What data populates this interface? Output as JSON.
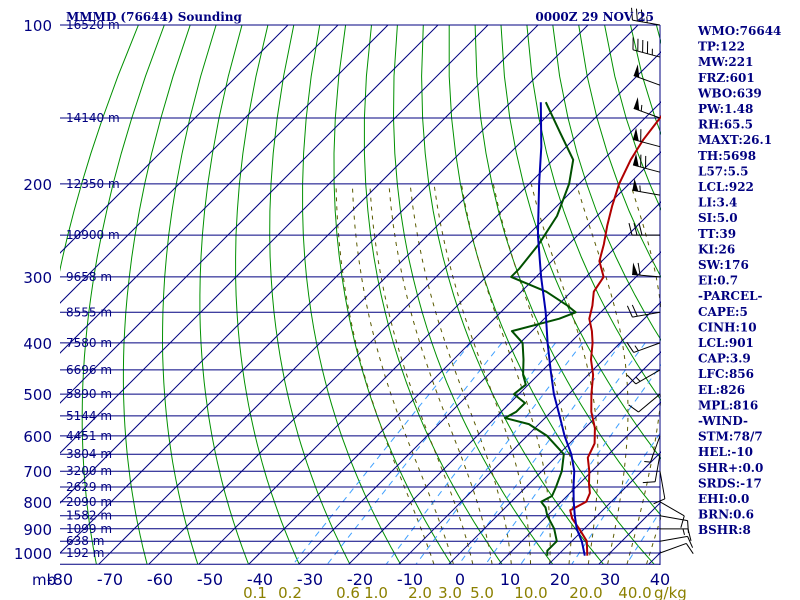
{
  "chart_data": {
    "type": "line",
    "subtype": "skew-t log-p sounding",
    "title": "MMMD (76644) Sounding",
    "valid_time": "0000Z 29 NOV 25",
    "pressure_unit": "mb",
    "mixing_ratio_unit": "g/kg",
    "pressure_range": [
      100,
      1050
    ],
    "temperature_range": [
      -80,
      40
    ],
    "pressure_ticks": [
      100,
      200,
      300,
      400,
      500,
      600,
      700,
      800,
      900,
      1000
    ],
    "temperature_ticks": [
      -80,
      -70,
      -60,
      -50,
      -40,
      -30,
      -20,
      -10,
      0,
      10,
      20,
      30,
      40
    ],
    "temperature_tick_labels": [
      "-80",
      "-70",
      "-60",
      "-50",
      "-40",
      "-30",
      "-20",
      "-10",
      "0",
      "10",
      "20",
      "30",
      "40"
    ],
    "mixing_ratio_labels": [
      "0.1",
      "0.2",
      "0.6",
      "1.0",
      "2.0",
      "3.0",
      "5.0",
      "10.0",
      "20.0",
      "40.0"
    ],
    "height_levels": [
      {
        "p": 100,
        "label": "16520 m"
      },
      {
        "p": 150,
        "label": "14140 m"
      },
      {
        "p": 200,
        "label": "12350 m"
      },
      {
        "p": 250,
        "label": "10900 m"
      },
      {
        "p": 300,
        "label": "9658 m"
      },
      {
        "p": 350,
        "label": "8555 m"
      },
      {
        "p": 400,
        "label": "7580 m"
      },
      {
        "p": 450,
        "label": "6696 m"
      },
      {
        "p": 500,
        "label": "5890 m"
      },
      {
        "p": 550,
        "label": "5144 m"
      },
      {
        "p": 600,
        "label": "4451 m"
      },
      {
        "p": 650,
        "label": "3804 m"
      },
      {
        "p": 700,
        "label": "3200 m"
      },
      {
        "p": 750,
        "label": "2629 m"
      },
      {
        "p": 800,
        "label": "2090 m"
      },
      {
        "p": 850,
        "label": "1582 m"
      },
      {
        "p": 900,
        "label": "1099 m"
      },
      {
        "p": 950,
        "label": "638 m"
      },
      {
        "p": 1000,
        "label": "192 m"
      }
    ],
    "series": [
      {
        "name": "Temperature",
        "color": "#b00000",
        "points": [
          [
            100,
            -64.5
          ],
          [
            110,
            -64
          ],
          [
            120,
            -60
          ],
          [
            135,
            -58
          ],
          [
            150,
            -57
          ],
          [
            165,
            -56
          ],
          [
            180,
            -54.5
          ],
          [
            200,
            -52
          ],
          [
            220,
            -49
          ],
          [
            240,
            -46
          ],
          [
            260,
            -43
          ],
          [
            280,
            -40.5
          ],
          [
            300,
            -36.5
          ],
          [
            320,
            -35.5
          ],
          [
            340,
            -33
          ],
          [
            360,
            -31
          ],
          [
            380,
            -28
          ],
          [
            400,
            -25.5
          ],
          [
            430,
            -22.5
          ],
          [
            460,
            -19
          ],
          [
            500,
            -15.5
          ],
          [
            540,
            -12
          ],
          [
            580,
            -8
          ],
          [
            620,
            -5
          ],
          [
            660,
            -3.5
          ],
          [
            700,
            -0.5
          ],
          [
            740,
            2
          ],
          [
            770,
            4
          ],
          [
            800,
            5
          ],
          [
            830,
            3.5
          ],
          [
            860,
            5.5
          ],
          [
            900,
            9
          ],
          [
            950,
            13
          ],
          [
            1012,
            16
          ]
        ]
      },
      {
        "name": "Dewpoint",
        "color": "#005000",
        "points": [
          [
            140,
            -83
          ],
          [
            160,
            -74
          ],
          [
            180,
            -66
          ],
          [
            200,
            -62
          ],
          [
            230,
            -58
          ],
          [
            260,
            -56
          ],
          [
            290,
            -55
          ],
          [
            300,
            -55
          ],
          [
            320,
            -45
          ],
          [
            340,
            -38
          ],
          [
            350,
            -35
          ],
          [
            360,
            -37
          ],
          [
            380,
            -44
          ],
          [
            400,
            -39.5
          ],
          [
            430,
            -36
          ],
          [
            460,
            -33
          ],
          [
            480,
            -30.5
          ],
          [
            500,
            -31
          ],
          [
            520,
            -27
          ],
          [
            540,
            -27
          ],
          [
            555,
            -28
          ],
          [
            570,
            -22
          ],
          [
            600,
            -16
          ],
          [
            650,
            -9
          ],
          [
            700,
            -6
          ],
          [
            750,
            -4
          ],
          [
            780,
            -3
          ],
          [
            800,
            -4
          ],
          [
            820,
            -2
          ],
          [
            850,
            0
          ],
          [
            900,
            4
          ],
          [
            950,
            7
          ],
          [
            990,
            7
          ],
          [
            1012,
            8
          ]
        ]
      },
      {
        "name": "Parcel",
        "color": "#0000b0",
        "points": [
          [
            140,
            -84
          ],
          [
            170,
            -75
          ],
          [
            200,
            -68
          ],
          [
            250,
            -58
          ],
          [
            300,
            -49
          ],
          [
            350,
            -41
          ],
          [
            400,
            -34.5
          ],
          [
            450,
            -28.5
          ],
          [
            500,
            -23
          ],
          [
            550,
            -17.5
          ],
          [
            600,
            -12.5
          ],
          [
            650,
            -7.5
          ],
          [
            700,
            -3.5
          ],
          [
            750,
            -0.5
          ],
          [
            800,
            2.5
          ],
          [
            850,
            5.5
          ],
          [
            900,
            8.5
          ],
          [
            950,
            12
          ],
          [
            1012,
            15.5
          ]
        ]
      }
    ],
    "indices": [
      "WMO:76644",
      "TP:122",
      "MW:221",
      "FRZ:601",
      "WBO:639",
      "PW:1.48",
      "RH:65.5",
      "MAXT:26.1",
      "TH:5698",
      "L57:5.5",
      "LCL:922",
      "LI:3.4",
      "SI:5.0",
      "TT:39",
      "KI:26",
      "SW:176",
      "EI:0.7",
      "-PARCEL-",
      "CAPE:5",
      "CINH:10",
      "LCL:901",
      "CAP:3.9",
      "LFC:856",
      "EL:826",
      "MPL:816",
      "-WIND-",
      "STM:78/7",
      "HEL:-10",
      "SHR+:0.0",
      "SRDS:-17",
      "EHI:0.0",
      "BRN:0.6",
      "BSHR:8"
    ],
    "wind_barbs": [
      {
        "p": 100,
        "dir": 280,
        "spd": 35
      },
      {
        "p": 115,
        "dir": 285,
        "spd": 45
      },
      {
        "p": 130,
        "dir": 290,
        "spd": 50
      },
      {
        "p": 150,
        "dir": 290,
        "spd": 55
      },
      {
        "p": 170,
        "dir": 285,
        "spd": 60
      },
      {
        "p": 190,
        "dir": 285,
        "spd": 70
      },
      {
        "p": 210,
        "dir": 280,
        "spd": 55
      },
      {
        "p": 250,
        "dir": 270,
        "spd": 30
      },
      {
        "p": 300,
        "dir": 275,
        "spd": 60
      },
      {
        "p": 350,
        "dir": 260,
        "spd": 20
      },
      {
        "p": 400,
        "dir": 250,
        "spd": 15
      },
      {
        "p": 450,
        "dir": 240,
        "spd": 15
      },
      {
        "p": 500,
        "dir": 230,
        "spd": 10
      },
      {
        "p": 600,
        "dir": 200,
        "spd": 5
      },
      {
        "p": 650,
        "dir": 190,
        "spd": 10
      },
      {
        "p": 700,
        "dir": 170,
        "spd": 10
      },
      {
        "p": 800,
        "dir": 120,
        "spd": 10
      },
      {
        "p": 850,
        "dir": 100,
        "spd": 10
      },
      {
        "p": 900,
        "dir": 90,
        "spd": 15
      },
      {
        "p": 950,
        "dir": 80,
        "spd": 10
      },
      {
        "p": 1000,
        "dir": 70,
        "spd": 10
      }
    ],
    "colors": {
      "grid": "#000080",
      "dry_adiabat": "#009000",
      "moist_adiabat": "#5a5a00",
      "mixing_ratio": "#3fa0ff",
      "label": "#000080",
      "mixing_label": "#8b8000",
      "wind": "#000000"
    }
  }
}
